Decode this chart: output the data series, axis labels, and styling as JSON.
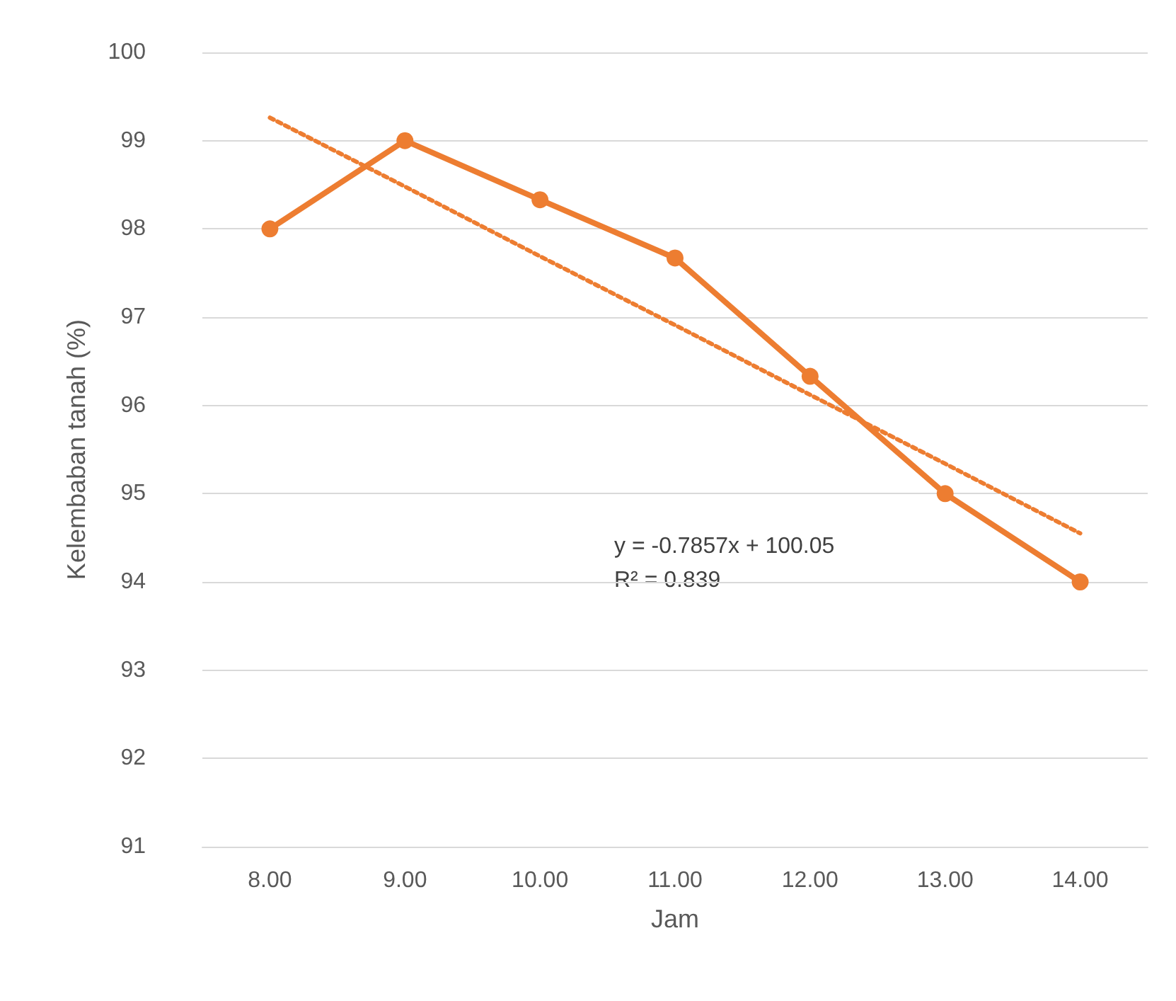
{
  "chart_data": {
    "type": "line",
    "xlabel": "Jam",
    "ylabel": "Kelembaban tanah (%)",
    "categories": [
      "8.00",
      "9.00",
      "10.00",
      "11.00",
      "12.00",
      "13.00",
      "14.00"
    ],
    "series": [
      {
        "color": "#ed7d31",
        "values": [
          98,
          99,
          98.33,
          97.67,
          96.33,
          95,
          94
        ],
        "marker": "circle",
        "line_style": "solid"
      },
      {
        "color": "#ed7d31",
        "values": [
          99.26,
          98.48,
          97.69,
          96.91,
          96.12,
          95.34,
          94.55
        ],
        "marker": "none",
        "line_style": "dotted"
      }
    ],
    "ylim": [
      91,
      100
    ],
    "yticks": [
      91,
      92,
      93,
      94,
      95,
      96,
      97,
      98,
      99,
      100
    ],
    "grid": "y",
    "annotations": [
      "y = -0.7857x + 100.05",
      "R² = 0.839"
    ]
  }
}
